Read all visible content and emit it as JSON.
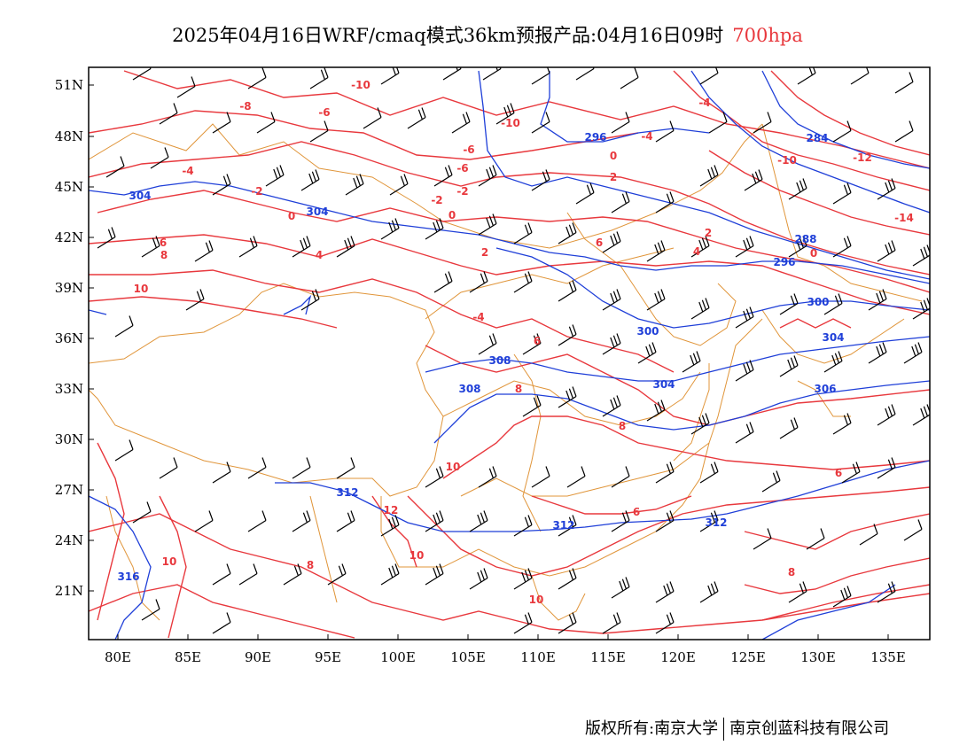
{
  "title": {
    "text": "2025年04月16日WRF/cmaq模式36km预报产品:04月16日09时",
    "level": "700hpa"
  },
  "colors": {
    "temperature_contour": "#e8383d",
    "height_contour": "#1f3fd8",
    "boundary": "#e0953a",
    "wind_barb": "#000000",
    "title_level": "#e8383d"
  },
  "axes": {
    "lat_labels": [
      "51N",
      "48N",
      "45N",
      "42N",
      "39N",
      "36N",
      "33N",
      "30N",
      "27N",
      "24N",
      "21N"
    ],
    "lon_labels": [
      "80E",
      "85E",
      "90E",
      "95E",
      "100E",
      "105E",
      "110E",
      "115E",
      "120E",
      "125E",
      "130E",
      "135E"
    ]
  },
  "height_labels": [
    "304",
    "304",
    "308",
    "308",
    "312",
    "312",
    "312",
    "316",
    "300",
    "300",
    "304",
    "304",
    "306",
    "296",
    "296",
    "288",
    "284"
  ],
  "temperature_labels": [
    "-10",
    "-8",
    "-6",
    "-6",
    "-6",
    "-4",
    "-4",
    "-4",
    "-2",
    "-2",
    "-2",
    "0",
    "0",
    "0",
    "2",
    "2",
    "2",
    "4",
    "4",
    "6",
    "6",
    "6",
    "8",
    "8",
    "8",
    "10",
    "10",
    "10",
    "10",
    "12",
    "-10",
    "-12",
    "-14",
    "-10",
    "6",
    "6",
    "8",
    "8",
    "10",
    "-4",
    "0"
  ],
  "footer": {
    "copyright": "版权所有:南京大学",
    "company": "南京创蓝科技有限公司"
  }
}
